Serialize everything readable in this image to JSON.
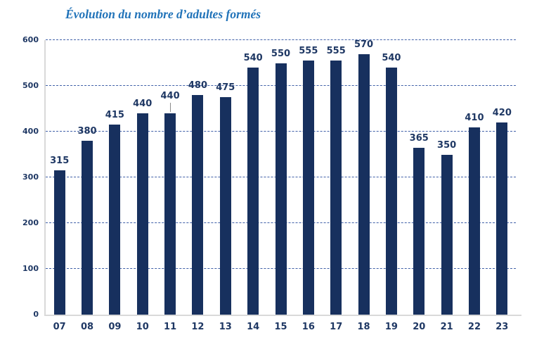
{
  "chart_data": {
    "type": "bar",
    "title": "Évolution du nombre d’adultes formés",
    "categories": [
      "07",
      "08",
      "09",
      "10",
      "11",
      "12",
      "13",
      "14",
      "15",
      "16",
      "17",
      "18",
      "19",
      "20",
      "21",
      "22",
      "23"
    ],
    "values": [
      315,
      380,
      415,
      440,
      440,
      480,
      475,
      540,
      550,
      555,
      555,
      570,
      540,
      365,
      350,
      410,
      420
    ],
    "xlabel": "",
    "ylabel": "",
    "ylim": [
      0,
      600
    ],
    "yticks": [
      0,
      100,
      200,
      300,
      400,
      500,
      600
    ],
    "grid": true,
    "gridline_style": "dashed",
    "legend": false,
    "data_labels": true,
    "label_leader_line_category": "11",
    "colors": {
      "bar": "#17305E",
      "data_label": "#1F3864",
      "tick_label": "#1F3864",
      "gridline": "#4060A8",
      "axis_line": "#D9D9D9",
      "title": "#2173B9",
      "leader_line": "#8C8C8C"
    }
  }
}
